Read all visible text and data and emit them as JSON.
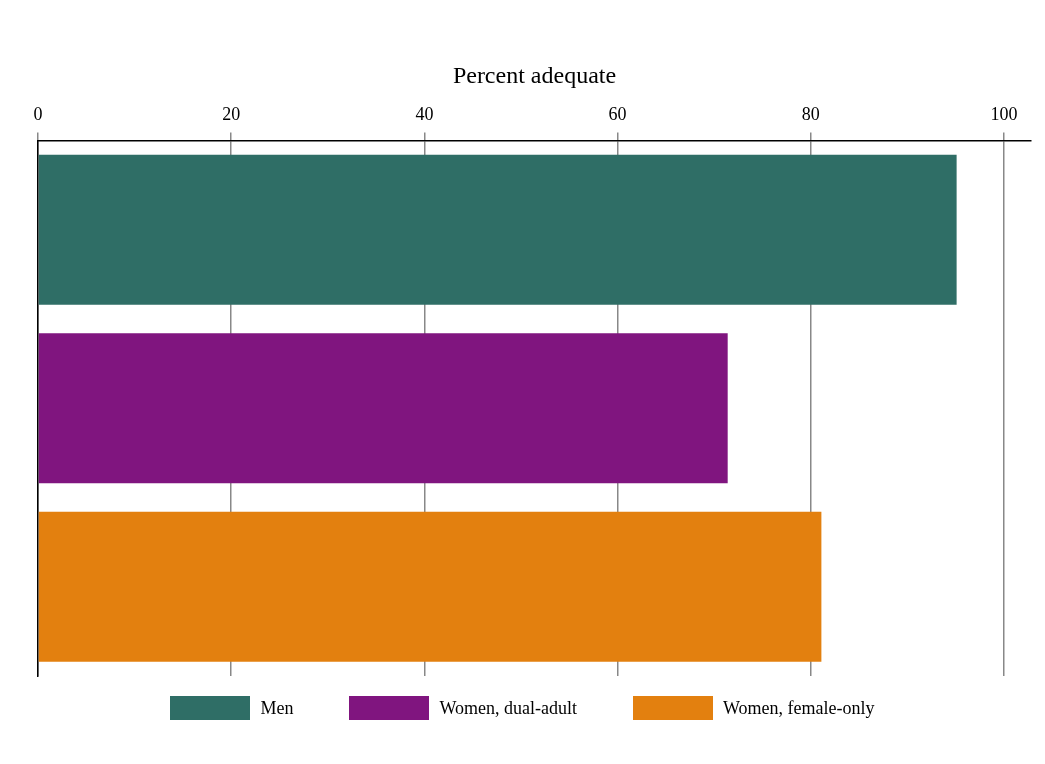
{
  "chart_data": {
    "type": "bar",
    "orientation": "horizontal",
    "stacked": true,
    "xlabel": "Percent adequate",
    "categories": [
      null,
      null,
      null
    ],
    "series": [
      {
        "name": "Men",
        "color": "#2f6e66",
        "values": [
          95.1,
          null,
          null
        ]
      },
      {
        "name": "Women, dual-adult",
        "color": "#80157f",
        "values": [
          null,
          71.4,
          null
        ]
      },
      {
        "name": "Women, female-only",
        "color": "#e3800f",
        "values": [
          null,
          null,
          81.1
        ]
      }
    ],
    "xlim": [
      0,
      102.8
    ],
    "xticks": [
      0,
      20,
      40,
      60,
      80,
      100
    ],
    "grid": "x",
    "legend": "bottom"
  }
}
